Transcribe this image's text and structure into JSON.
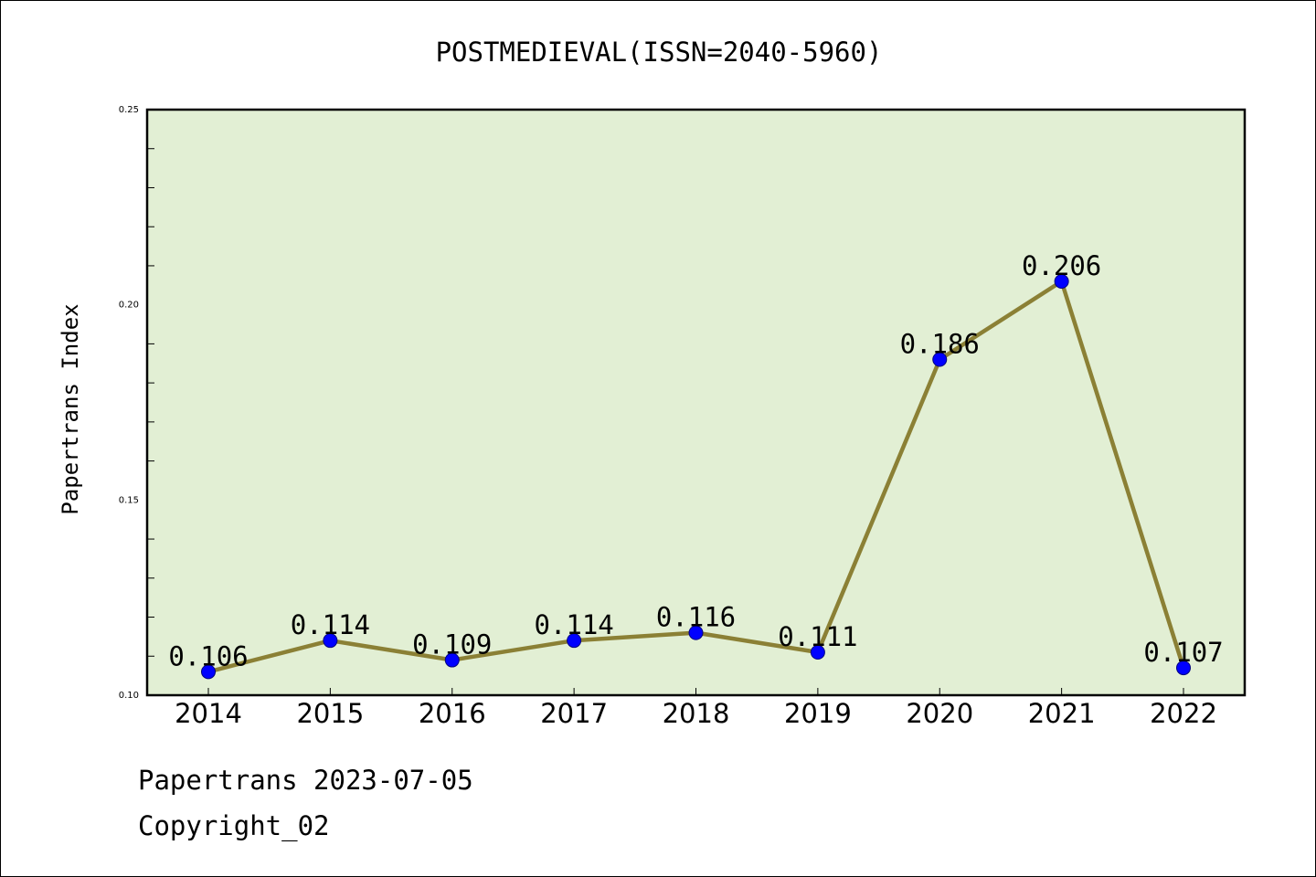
{
  "chart_data": {
    "type": "line",
    "title": "POSTMEDIEVAL(ISSN=2040-5960)",
    "xlabel": "",
    "ylabel": "Papertrans Index",
    "categories": [
      "2014",
      "2015",
      "2016",
      "2017",
      "2018",
      "2019",
      "2020",
      "2021",
      "2022"
    ],
    "series": [
      {
        "values": [
          0.106,
          0.114,
          0.109,
          0.114,
          0.116,
          0.111,
          0.186,
          0.206,
          0.107
        ],
        "labels": [
          "0.106",
          "0.114",
          "0.109",
          "0.114",
          "0.116",
          "0.111",
          "0.186",
          "0.206",
          "0.107"
        ]
      }
    ],
    "ylim": [
      0.1,
      0.25
    ],
    "yticks": [
      "0.10",
      "0.15",
      "0.20",
      "0.25"
    ],
    "grid": false,
    "colors": {
      "line": "#8b8035",
      "marker": "#0000ff",
      "plot_background": "#e2efd4",
      "axis": "#000000"
    }
  },
  "footer": {
    "date_line": "Papertrans 2023-07-05",
    "copyright_line": "Copyright_02"
  }
}
